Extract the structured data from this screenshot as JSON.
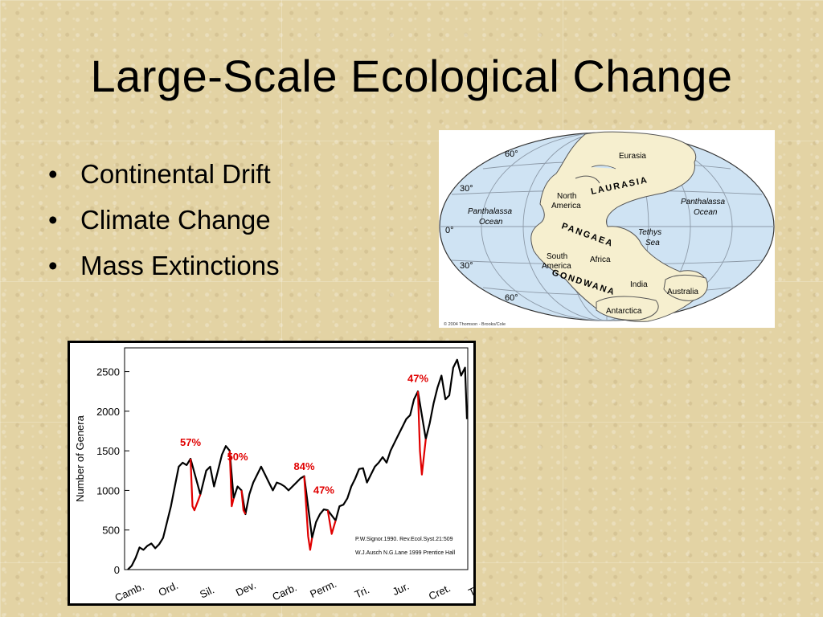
{
  "slide": {
    "title": "Large-Scale Ecological Change",
    "bullets": [
      "Continental Drift",
      "Climate Change",
      "Mass Extinctions"
    ]
  },
  "map": {
    "latitudes": [
      "60°",
      "30°",
      "0°",
      "30°",
      "60°"
    ],
    "labels": {
      "eurasia": "Eurasia",
      "laurasia": "LAURASIA",
      "north_america": [
        "North",
        "America"
      ],
      "panthalassa_left": [
        "Panthalassa",
        "Ocean"
      ],
      "panthalassa_right": [
        "Panthalassa",
        "Ocean"
      ],
      "pangaea": "PANGAEA",
      "tethys": [
        "Tethys",
        "Sea"
      ],
      "africa": "Africa",
      "south_america": [
        "South",
        "America"
      ],
      "gondwana": "GONDWANA",
      "india": "India",
      "australia": "Australia",
      "antarctica": "Antarctica"
    },
    "copyright": "© 2004 Thomson - Brooks/Cole",
    "colors": {
      "ocean": "#cfe3f3",
      "land": "#f6efcf",
      "grid": "#8d9aa8"
    }
  },
  "chart_data": {
    "type": "line",
    "ylabel": "Number of Genera",
    "xlabel": "",
    "ylim": [
      0,
      2800
    ],
    "yticks": [
      0,
      500,
      1000,
      1500,
      2000,
      2500
    ],
    "periods": [
      "Camb.",
      "Ord.",
      "Sil.",
      "Dev.",
      "Carb.",
      "Perm.",
      "Tri.",
      "Jur.",
      "Cret.",
      "Tert."
    ],
    "series": [
      {
        "color": "#000000",
        "points": [
          [
            0,
            0
          ],
          [
            2,
            50
          ],
          [
            4,
            150
          ],
          [
            6,
            280
          ],
          [
            8,
            250
          ],
          [
            10,
            300
          ],
          [
            12,
            330
          ],
          [
            14,
            270
          ],
          [
            16,
            320
          ],
          [
            18,
            400
          ],
          [
            20,
            600
          ],
          [
            22,
            800
          ],
          [
            24,
            1050
          ],
          [
            26,
            1300
          ],
          [
            28,
            1350
          ],
          [
            30,
            1320
          ],
          [
            32,
            1400
          ],
          [
            37,
            950
          ],
          [
            40,
            1250
          ],
          [
            42,
            1300
          ],
          [
            44,
            1050
          ],
          [
            46,
            1250
          ],
          [
            48,
            1450
          ],
          [
            50,
            1560
          ],
          [
            52,
            1500
          ],
          [
            54,
            900
          ],
          [
            56,
            1050
          ],
          [
            58,
            1000
          ],
          [
            60,
            700
          ],
          [
            62,
            950
          ],
          [
            64,
            1100
          ],
          [
            66,
            1200
          ],
          [
            68,
            1300
          ],
          [
            70,
            1200
          ],
          [
            72,
            1100
          ],
          [
            74,
            1000
          ],
          [
            76,
            1100
          ],
          [
            78,
            1080
          ],
          [
            80,
            1050
          ],
          [
            82,
            1000
          ],
          [
            84,
            1050
          ],
          [
            86,
            1100
          ],
          [
            88,
            1150
          ],
          [
            90,
            1180
          ],
          [
            94,
            400
          ],
          [
            96,
            600
          ],
          [
            98,
            700
          ],
          [
            100,
            760
          ],
          [
            102,
            750
          ],
          [
            106,
            620
          ],
          [
            108,
            800
          ],
          [
            110,
            820
          ],
          [
            112,
            900
          ],
          [
            114,
            1050
          ],
          [
            116,
            1150
          ],
          [
            118,
            1270
          ],
          [
            120,
            1280
          ],
          [
            122,
            1100
          ],
          [
            124,
            1200
          ],
          [
            126,
            1300
          ],
          [
            128,
            1350
          ],
          [
            130,
            1420
          ],
          [
            132,
            1350
          ],
          [
            134,
            1500
          ],
          [
            136,
            1600
          ],
          [
            138,
            1700
          ],
          [
            140,
            1800
          ],
          [
            142,
            1900
          ],
          [
            144,
            1950
          ],
          [
            146,
            2150
          ],
          [
            148,
            2250
          ],
          [
            152,
            1650
          ],
          [
            154,
            1850
          ],
          [
            156,
            2100
          ],
          [
            158,
            2300
          ],
          [
            160,
            2450
          ],
          [
            162,
            2150
          ],
          [
            164,
            2200
          ],
          [
            166,
            2550
          ],
          [
            168,
            2650
          ],
          [
            170,
            2450
          ],
          [
            172,
            2550
          ],
          [
            173,
            1900
          ]
        ]
      },
      {
        "color": "#e00000",
        "segments": [
          [
            [
              32,
              1400
            ],
            [
              33,
              800
            ],
            [
              34,
              750
            ],
            [
              36,
              880
            ],
            [
              37,
              950
            ]
          ],
          [
            [
              52,
              1500
            ],
            [
              53,
              800
            ],
            [
              54,
              900
            ]
          ],
          [
            [
              58,
              1000
            ],
            [
              59,
              750
            ],
            [
              60,
              700
            ]
          ],
          [
            [
              90,
              1180
            ],
            [
              92,
              420
            ],
            [
              93,
              250
            ],
            [
              94,
              400
            ]
          ],
          [
            [
              102,
              750
            ],
            [
              104,
              450
            ],
            [
              106,
              620
            ]
          ],
          [
            [
              148,
              2250
            ],
            [
              149,
              1500
            ],
            [
              150,
              1200
            ],
            [
              152,
              1650
            ]
          ]
        ]
      }
    ],
    "annotations": [
      {
        "text": "57%",
        "x": 32,
        "y": 1560
      },
      {
        "text": "50%",
        "x": 56,
        "y": 1380
      },
      {
        "text": "84%",
        "x": 90,
        "y": 1260
      },
      {
        "text": "47%",
        "x": 100,
        "y": 960
      },
      {
        "text": "47%",
        "x": 148,
        "y": 2370
      }
    ],
    "sources": [
      "P.W.Signor.1990. Rev.Ecol.Syst.21:509",
      "W.J.Ausch N.G.Lane 1999 Prentice Hall"
    ],
    "accent_color": "#e00000"
  }
}
